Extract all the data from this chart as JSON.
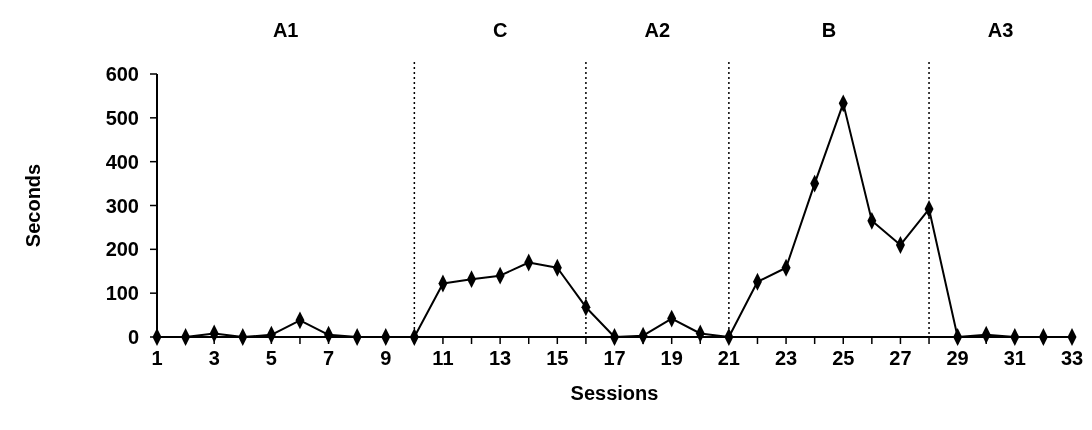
{
  "chart_data": {
    "type": "line",
    "xlabel": "Sessions",
    "ylabel": "Seconds",
    "x": [
      1,
      2,
      3,
      4,
      5,
      6,
      7,
      8,
      9,
      10,
      11,
      12,
      13,
      14,
      15,
      16,
      17,
      18,
      19,
      20,
      21,
      22,
      23,
      24,
      25,
      26,
      27,
      28,
      29,
      30,
      31,
      32,
      33
    ],
    "series": [
      {
        "color": "#000000",
        "values": [
          0,
          0,
          8,
          0,
          5,
          38,
          5,
          0,
          0,
          0,
          122,
          132,
          140,
          170,
          158,
          68,
          0,
          3,
          42,
          8,
          0,
          126,
          158,
          350,
          533,
          265,
          210,
          292,
          0,
          5,
          0,
          0,
          0
        ]
      }
    ],
    "xlim": [
      1,
      33
    ],
    "xticks": [
      1,
      {
        "value": 2,
        "label": null
      },
      3,
      {
        "value": 4,
        "label": null
      },
      5,
      {
        "value": 6,
        "label": null
      },
      7,
      {
        "value": 8,
        "label": null
      },
      9,
      {
        "value": 10,
        "label": null
      },
      11,
      {
        "value": 12,
        "label": null
      },
      13,
      {
        "value": 14,
        "label": null
      },
      15,
      {
        "value": 16,
        "label": null
      },
      17,
      {
        "value": 18,
        "label": null
      },
      19,
      {
        "value": 20,
        "label": null
      },
      21,
      {
        "value": 22,
        "label": null
      },
      23,
      {
        "value": 24,
        "label": null
      },
      25,
      {
        "value": 26,
        "label": null
      },
      27,
      {
        "value": 28,
        "label": null
      },
      29,
      {
        "value": 30,
        "label": null
      },
      31,
      {
        "value": 32,
        "label": null
      },
      33
    ],
    "ylim": [
      0,
      600
    ],
    "yticks": [
      0,
      100,
      200,
      300,
      400,
      500,
      600
    ],
    "ref_lines": [
      {
        "axis": "x",
        "value": 10,
        "line_style": "dotted"
      },
      {
        "axis": "x",
        "value": 16,
        "line_style": "dotted"
      },
      {
        "axis": "x",
        "value": 21,
        "line_style": "dotted"
      },
      {
        "axis": "x",
        "value": 28,
        "line_style": "dotted"
      }
    ],
    "annotations": [
      "A1",
      "C",
      "A2",
      "B",
      "A3"
    ],
    "marker": "diamond",
    "line_style": "solid",
    "grid": false
  }
}
